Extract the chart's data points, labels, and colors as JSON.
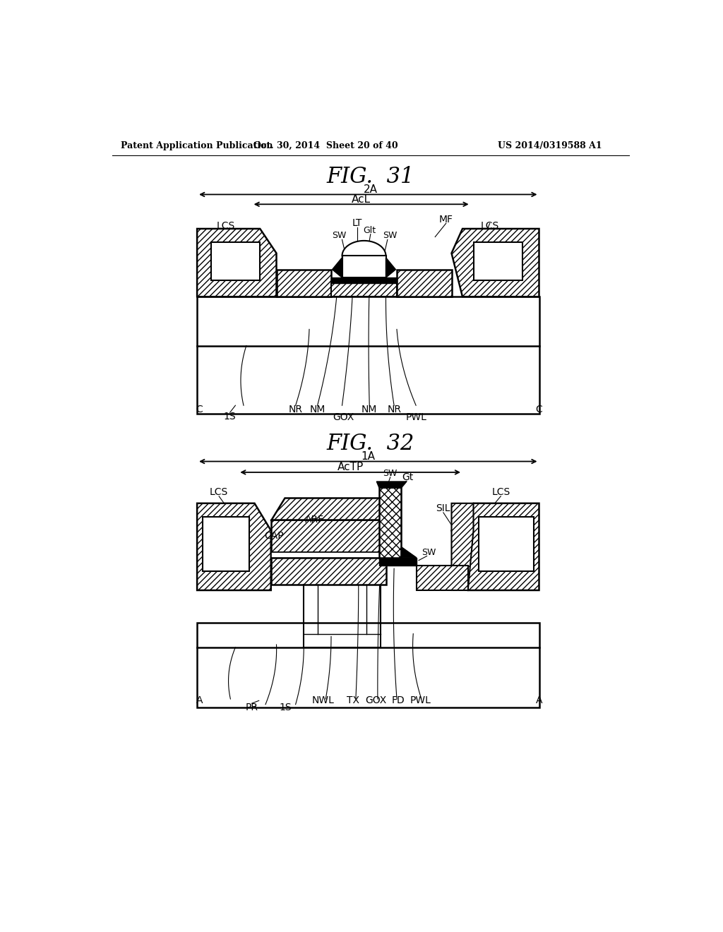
{
  "header_left": "Patent Application Publication",
  "header_center": "Oct. 30, 2014  Sheet 20 of 40",
  "header_right": "US 2014/0319588 A1",
  "bg_color": "#ffffff",
  "line_color": "#000000"
}
